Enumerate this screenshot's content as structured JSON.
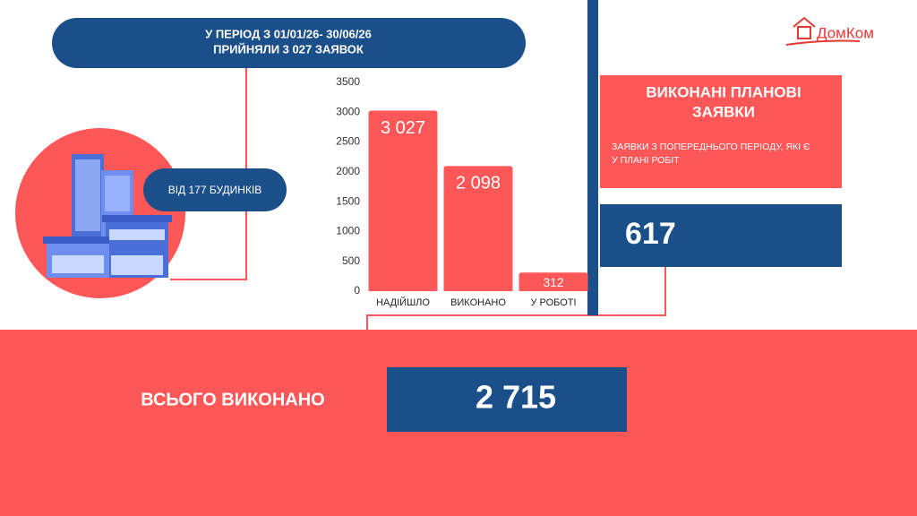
{
  "header": {
    "line1": "У ПЕРІОД З 01/01/26- 30/06/26",
    "line2": "ПРИЙНЯЛИ 3 027 ЗАЯВОК"
  },
  "buildings": "ВІД 177 БУДИНКІВ",
  "logo": "ДомКом",
  "planned": {
    "title_line1": "ВИКОНАНІ ПЛАНОВІ",
    "title_line2": "ЗАЯВКИ",
    "note_line1": "ЗАЯВКИ З ПОПЕРЕДНЬОГО ПЕРІОДУ, ЯКІ Є",
    "note_line2": "У ПЛАНІ РОБІТ",
    "value": "617"
  },
  "total": {
    "label": "ВСЬОГО ВИКОНАНО",
    "value": "2 715"
  },
  "chart_data": {
    "type": "bar",
    "categories": [
      "НАДІЙШЛО",
      "ВИКОНАНО",
      "У РОБОТІ"
    ],
    "values": [
      3027,
      2098,
      312
    ],
    "value_labels": [
      "3 027",
      "2 098",
      "312"
    ],
    "color": "#ff5757",
    "ylim": [
      0,
      3500
    ],
    "yticks": [
      0,
      500,
      1000,
      1500,
      2000,
      2500,
      3000,
      3500
    ],
    "grid": false
  }
}
